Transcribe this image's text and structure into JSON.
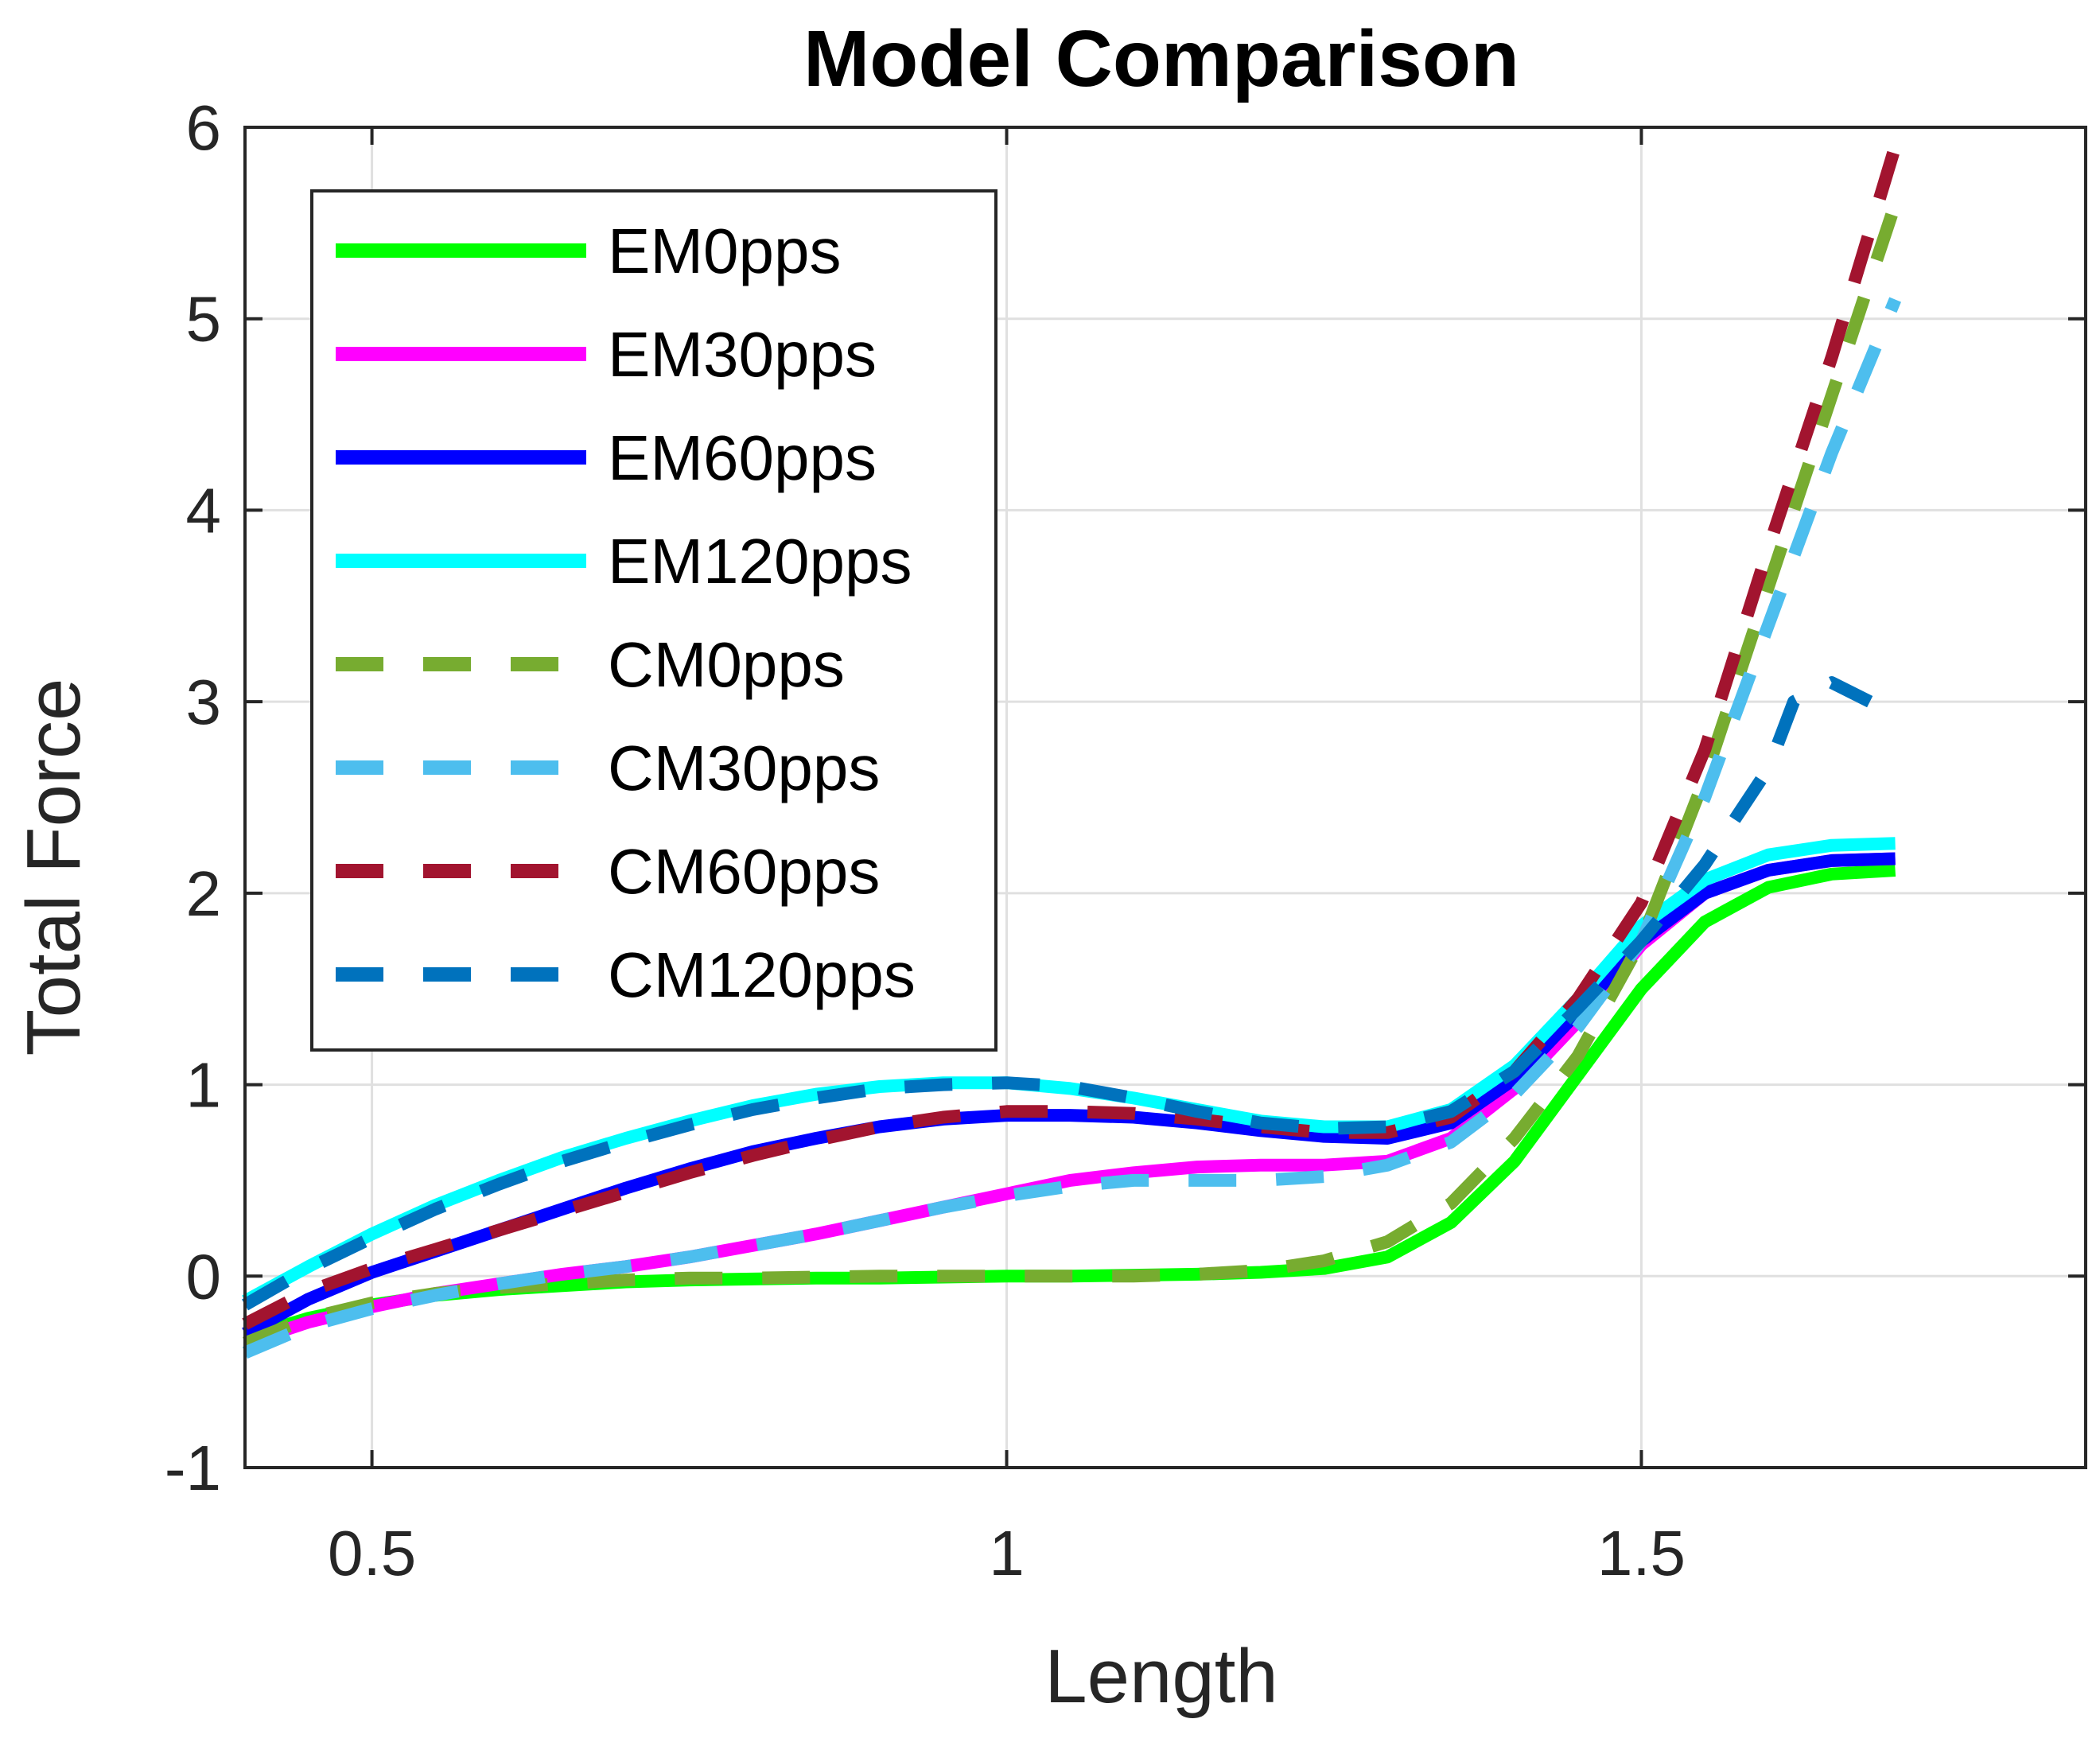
{
  "chart_data": {
    "type": "line",
    "title": "Model Comparison",
    "xlabel": "Length",
    "ylabel": "Total Force",
    "xlim": [
      0.4,
      1.85
    ],
    "ylim": [
      -1,
      6
    ],
    "xticks": [
      0.5,
      1,
      1.5
    ],
    "xtick_labels": [
      "0.5",
      "1",
      "1.5"
    ],
    "yticks": [
      -1,
      0,
      1,
      2,
      3,
      4,
      5,
      6
    ],
    "ytick_labels": [
      "-1",
      "0",
      "1",
      "2",
      "3",
      "4",
      "5",
      "6"
    ],
    "grid": true,
    "legend_position": "top-left",
    "series": [
      {
        "name": "EM0pps",
        "color": "#00ff00",
        "style": "solid",
        "x": [
          0.4,
          0.45,
          0.5,
          0.55,
          0.6,
          0.65,
          0.7,
          0.75,
          0.8,
          0.85,
          0.9,
          0.95,
          1.0,
          1.05,
          1.1,
          1.15,
          1.2,
          1.25,
          1.3,
          1.35,
          1.4,
          1.45,
          1.5,
          1.55,
          1.6,
          1.65,
          1.7
        ],
        "y": [
          -0.32,
          -0.22,
          -0.15,
          -0.1,
          -0.07,
          -0.05,
          -0.03,
          -0.02,
          -0.015,
          -0.01,
          -0.01,
          -0.005,
          0,
          0,
          0.005,
          0.01,
          0.02,
          0.04,
          0.1,
          0.28,
          0.6,
          1.05,
          1.5,
          1.85,
          2.03,
          2.1,
          2.12
        ]
      },
      {
        "name": "EM30pps",
        "color": "#ff00ff",
        "style": "solid",
        "x": [
          0.4,
          0.45,
          0.5,
          0.55,
          0.6,
          0.65,
          0.7,
          0.75,
          0.8,
          0.85,
          0.9,
          0.95,
          1.0,
          1.05,
          1.1,
          1.15,
          1.2,
          1.25,
          1.3,
          1.35,
          1.4,
          1.45,
          1.5,
          1.55,
          1.6,
          1.65,
          1.7
        ],
        "y": [
          -0.35,
          -0.24,
          -0.16,
          -0.09,
          -0.04,
          0.01,
          0.05,
          0.1,
          0.16,
          0.22,
          0.29,
          0.36,
          0.43,
          0.5,
          0.54,
          0.57,
          0.58,
          0.58,
          0.6,
          0.72,
          0.98,
          1.33,
          1.73,
          2.0,
          2.12,
          2.17,
          2.18
        ]
      },
      {
        "name": "EM60pps",
        "color": "#0000ff",
        "style": "solid",
        "x": [
          0.4,
          0.45,
          0.5,
          0.55,
          0.6,
          0.65,
          0.7,
          0.75,
          0.8,
          0.85,
          0.9,
          0.95,
          1.0,
          1.05,
          1.1,
          1.15,
          1.2,
          1.25,
          1.3,
          1.35,
          1.4,
          1.45,
          1.5,
          1.55,
          1.6,
          1.65,
          1.7
        ],
        "y": [
          -0.3,
          -0.12,
          0.02,
          0.13,
          0.24,
          0.35,
          0.46,
          0.56,
          0.65,
          0.72,
          0.78,
          0.82,
          0.84,
          0.84,
          0.83,
          0.8,
          0.76,
          0.73,
          0.72,
          0.8,
          1.03,
          1.38,
          1.75,
          2.0,
          2.12,
          2.17,
          2.18
        ]
      },
      {
        "name": "EM120pps",
        "color": "#00ffff",
        "style": "solid",
        "x": [
          0.4,
          0.45,
          0.5,
          0.55,
          0.6,
          0.65,
          0.7,
          0.75,
          0.8,
          0.85,
          0.9,
          0.95,
          1.0,
          1.05,
          1.1,
          1.15,
          1.2,
          1.25,
          1.3,
          1.35,
          1.4,
          1.45,
          1.5,
          1.55,
          1.6,
          1.65,
          1.7
        ],
        "y": [
          -0.13,
          0.05,
          0.22,
          0.37,
          0.5,
          0.62,
          0.72,
          0.81,
          0.89,
          0.95,
          0.99,
          1.01,
          1.01,
          0.98,
          0.93,
          0.87,
          0.81,
          0.78,
          0.78,
          0.87,
          1.1,
          1.45,
          1.83,
          2.07,
          2.2,
          2.25,
          2.26
        ]
      },
      {
        "name": "CM0pps",
        "color": "#77ac30",
        "style": "dashed",
        "x": [
          0.4,
          0.45,
          0.5,
          0.55,
          0.6,
          0.65,
          0.7,
          0.75,
          0.8,
          0.85,
          0.9,
          0.95,
          1.0,
          1.05,
          1.1,
          1.15,
          1.2,
          1.25,
          1.3,
          1.35,
          1.4,
          1.45,
          1.5,
          1.55,
          1.6,
          1.65,
          1.7
        ],
        "y": [
          -0.35,
          -0.22,
          -0.14,
          -0.09,
          -0.06,
          -0.04,
          -0.02,
          -0.01,
          -0.01,
          -0.005,
          0,
          0,
          0,
          0,
          0,
          0.01,
          0.03,
          0.08,
          0.18,
          0.38,
          0.72,
          1.15,
          1.75,
          2.6,
          3.6,
          4.6,
          5.6
        ]
      },
      {
        "name": "CM30pps",
        "color": "#4dbeee",
        "style": "dashed",
        "x": [
          0.4,
          0.45,
          0.5,
          0.55,
          0.6,
          0.65,
          0.7,
          0.75,
          0.8,
          0.85,
          0.9,
          0.95,
          1.0,
          1.05,
          1.1,
          1.15,
          1.2,
          1.25,
          1.3,
          1.35,
          1.4,
          1.45,
          1.5,
          1.55,
          1.6,
          1.65,
          1.7
        ],
        "y": [
          -0.4,
          -0.26,
          -0.17,
          -0.1,
          -0.04,
          0.01,
          0.05,
          0.1,
          0.16,
          0.22,
          0.29,
          0.36,
          0.42,
          0.47,
          0.5,
          0.5,
          0.5,
          0.52,
          0.58,
          0.7,
          0.95,
          1.3,
          1.75,
          2.5,
          3.4,
          4.3,
          5.1
        ]
      },
      {
        "name": "CM60pps",
        "color": "#a2142f",
        "style": "dashed",
        "x": [
          0.4,
          0.45,
          0.5,
          0.55,
          0.6,
          0.65,
          0.7,
          0.75,
          0.8,
          0.85,
          0.9,
          0.95,
          1.0,
          1.05,
          1.1,
          1.15,
          1.2,
          1.25,
          1.3,
          1.35,
          1.4,
          1.45,
          1.5,
          1.55,
          1.6,
          1.65,
          1.7
        ],
        "y": [
          -0.25,
          -0.08,
          0.04,
          0.14,
          0.24,
          0.34,
          0.44,
          0.54,
          0.63,
          0.71,
          0.78,
          0.83,
          0.86,
          0.86,
          0.85,
          0.82,
          0.78,
          0.75,
          0.75,
          0.83,
          1.07,
          1.45,
          1.95,
          2.75,
          3.8,
          4.8,
          5.9
        ]
      },
      {
        "name": "CM120pps",
        "color": "#0072bd",
        "style": "dashed",
        "x": [
          0.4,
          0.45,
          0.5,
          0.55,
          0.6,
          0.65,
          0.7,
          0.75,
          0.8,
          0.85,
          0.9,
          0.95,
          1.0,
          1.05,
          1.1,
          1.15,
          1.2,
          1.25,
          1.3,
          1.35,
          1.4,
          1.45,
          1.5,
          1.55,
          1.6,
          1.62,
          1.65,
          1.68
        ],
        "y": [
          -0.15,
          0.04,
          0.2,
          0.35,
          0.48,
          0.6,
          0.7,
          0.79,
          0.87,
          0.93,
          0.98,
          1.0,
          1.01,
          0.99,
          0.93,
          0.86,
          0.8,
          0.77,
          0.78,
          0.86,
          1.07,
          1.4,
          1.75,
          2.15,
          2.65,
          3.0,
          3.1,
          3.0
        ]
      }
    ]
  }
}
